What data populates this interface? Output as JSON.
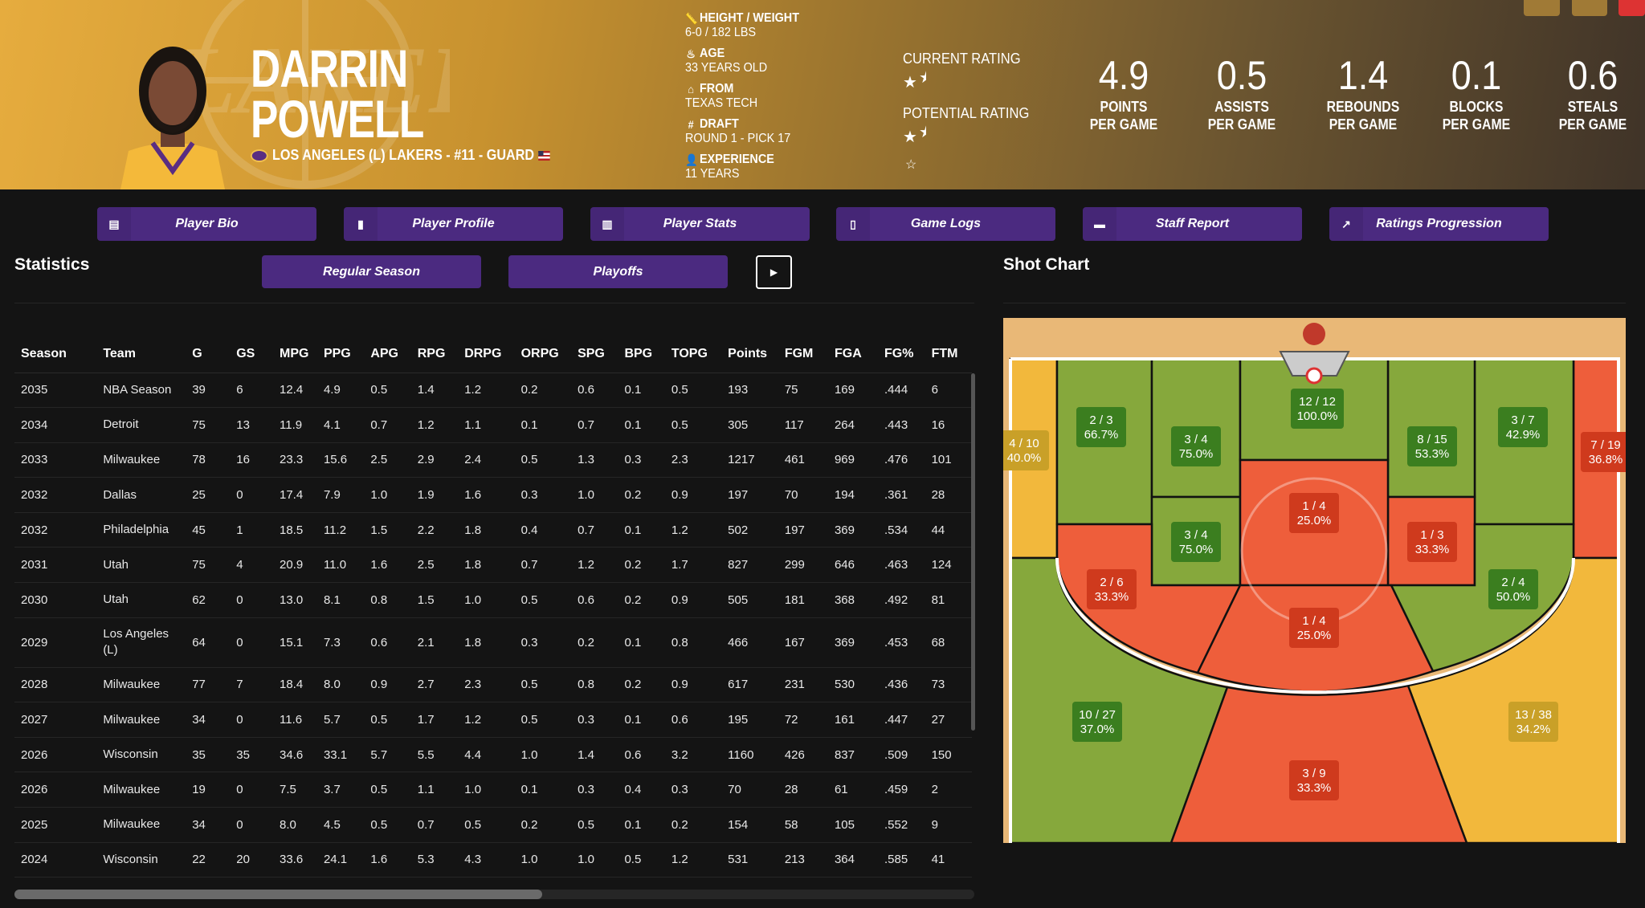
{
  "player": {
    "first_name": "DARRIN",
    "last_name": "POWELL",
    "team_line": "LOS ANGELES (L) LAKERS - #11 - GUARD",
    "team_logo_text": "LAKERS",
    "logo_bg_text": "LOS ANGELES LAKERS"
  },
  "info": [
    {
      "icon": "ruler-icon",
      "label": "HEIGHT / WEIGHT",
      "value": "6-0 / 182 LBS"
    },
    {
      "icon": "cake-icon",
      "label": "AGE",
      "value": "33 YEARS OLD"
    },
    {
      "icon": "school-icon",
      "label": "FROM",
      "value": "TEXAS TECH"
    },
    {
      "icon": "hash-icon",
      "label": "DRAFT",
      "value": "ROUND 1 - PICK 17"
    },
    {
      "icon": "user-clock-icon",
      "label": "EXPERIENCE",
      "value": "11 YEARS"
    }
  ],
  "ratings": {
    "current_label": "CURRENT RATING",
    "current_stars": 1.5,
    "potential_label": "POTENTIAL RATING",
    "potential_stars": 1.5
  },
  "averages": [
    {
      "value": "4.9",
      "l1": "POINTS",
      "l2": "PER GAME"
    },
    {
      "value": "0.5",
      "l1": "ASSISTS",
      "l2": "PER GAME"
    },
    {
      "value": "1.4",
      "l1": "REBOUNDS",
      "l2": "PER GAME"
    },
    {
      "value": "0.1",
      "l1": "BLOCKS",
      "l2": "PER GAME"
    },
    {
      "value": "0.6",
      "l1": "STEALS",
      "l2": "PER GAME"
    }
  ],
  "nav": [
    {
      "label": "Player Bio",
      "icon": "id-card-icon"
    },
    {
      "label": "Player Profile",
      "icon": "book-reader-icon"
    },
    {
      "label": "Player Stats",
      "icon": "bar-chart-icon"
    },
    {
      "label": "Game Logs",
      "icon": "clipboard-icon"
    },
    {
      "label": "Staff Report",
      "icon": "comment-icon"
    },
    {
      "label": "Ratings Progression",
      "icon": "line-chart-icon"
    }
  ],
  "statistics": {
    "title": "Statistics",
    "regular_label": "Regular Season",
    "playoffs_label": "Playoffs",
    "columns": [
      "Season",
      "Team",
      "G",
      "GS",
      "MPG",
      "PPG",
      "APG",
      "RPG",
      "DRPG",
      "ORPG",
      "SPG",
      "BPG",
      "TOPG",
      "Points",
      "FGM",
      "FGA",
      "FG%",
      "FTM"
    ],
    "rows": [
      [
        "2035",
        "NBA Season",
        "39",
        "6",
        "12.4",
        "4.9",
        "0.5",
        "1.4",
        "1.2",
        "0.2",
        "0.6",
        "0.1",
        "0.5",
        "193",
        "75",
        "169",
        ".444",
        "6"
      ],
      [
        "2034",
        "Detroit",
        "75",
        "13",
        "11.9",
        "4.1",
        "0.7",
        "1.2",
        "1.1",
        "0.1",
        "0.7",
        "0.1",
        "0.5",
        "305",
        "117",
        "264",
        ".443",
        "16"
      ],
      [
        "2033",
        "Milwaukee",
        "78",
        "16",
        "23.3",
        "15.6",
        "2.5",
        "2.9",
        "2.4",
        "0.5",
        "1.3",
        "0.3",
        "2.3",
        "1217",
        "461",
        "969",
        ".476",
        "101"
      ],
      [
        "2032",
        "Dallas",
        "25",
        "0",
        "17.4",
        "7.9",
        "1.0",
        "1.9",
        "1.6",
        "0.3",
        "1.0",
        "0.2",
        "0.9",
        "197",
        "70",
        "194",
        ".361",
        "28"
      ],
      [
        "2032",
        "Philadelphia",
        "45",
        "1",
        "18.5",
        "11.2",
        "1.5",
        "2.2",
        "1.8",
        "0.4",
        "0.7",
        "0.1",
        "1.2",
        "502",
        "197",
        "369",
        ".534",
        "44"
      ],
      [
        "2031",
        "Utah",
        "75",
        "4",
        "20.9",
        "11.0",
        "1.6",
        "2.5",
        "1.8",
        "0.7",
        "1.2",
        "0.2",
        "1.7",
        "827",
        "299",
        "646",
        ".463",
        "124"
      ],
      [
        "2030",
        "Utah",
        "62",
        "0",
        "13.0",
        "8.1",
        "0.8",
        "1.5",
        "1.0",
        "0.5",
        "0.6",
        "0.2",
        "0.9",
        "505",
        "181",
        "368",
        ".492",
        "81"
      ],
      [
        "2029",
        "Los Angeles (L)",
        "64",
        "0",
        "15.1",
        "7.3",
        "0.6",
        "2.1",
        "1.8",
        "0.3",
        "0.2",
        "0.1",
        "0.8",
        "466",
        "167",
        "369",
        ".453",
        "68"
      ],
      [
        "2028",
        "Milwaukee",
        "77",
        "7",
        "18.4",
        "8.0",
        "0.9",
        "2.7",
        "2.3",
        "0.5",
        "0.8",
        "0.2",
        "0.9",
        "617",
        "231",
        "530",
        ".436",
        "73"
      ],
      [
        "2027",
        "Milwaukee",
        "34",
        "0",
        "11.6",
        "5.7",
        "0.5",
        "1.7",
        "1.2",
        "0.5",
        "0.3",
        "0.1",
        "0.6",
        "195",
        "72",
        "161",
        ".447",
        "27"
      ],
      [
        "2026",
        "Wisconsin",
        "35",
        "35",
        "34.6",
        "33.1",
        "5.7",
        "5.5",
        "4.4",
        "1.0",
        "1.4",
        "0.6",
        "3.2",
        "1160",
        "426",
        "837",
        ".509",
        "150"
      ],
      [
        "2026",
        "Milwaukee",
        "19",
        "0",
        "7.5",
        "3.7",
        "0.5",
        "1.1",
        "1.0",
        "0.1",
        "0.3",
        "0.4",
        "0.3",
        "70",
        "28",
        "61",
        ".459",
        "2"
      ],
      [
        "2025",
        "Milwaukee",
        "34",
        "0",
        "8.0",
        "4.5",
        "0.5",
        "0.7",
        "0.5",
        "0.2",
        "0.5",
        "0.1",
        "0.2",
        "154",
        "58",
        "105",
        ".552",
        "9"
      ],
      [
        "2024",
        "Wisconsin",
        "22",
        "20",
        "33.6",
        "24.1",
        "1.6",
        "5.3",
        "4.3",
        "1.0",
        "1.0",
        "0.5",
        "1.2",
        "531",
        "213",
        "364",
        ".585",
        "41"
      ]
    ]
  },
  "shot_chart": {
    "title": "Shot Chart",
    "colors": {
      "good": "#86a83c",
      "bad": "#ee5e3b",
      "avg": "#f2b83c",
      "good_label": "#3b7e1f",
      "bad_label": "#cf3a1d",
      "avg_label": "#c9a028"
    },
    "zones": [
      {
        "id": "left-corner-3",
        "made": 4,
        "att": 10,
        "pct": "40.0%",
        "rating": "avg"
      },
      {
        "id": "left-baseline-mid",
        "made": 2,
        "att": 3,
        "pct": "66.7%",
        "rating": "good"
      },
      {
        "id": "left-short-upper",
        "made": 3,
        "att": 4,
        "pct": "75.0%",
        "rating": "good"
      },
      {
        "id": "restricted-area",
        "made": 12,
        "att": 12,
        "pct": "100.0%",
        "rating": "good"
      },
      {
        "id": "right-short-upper",
        "made": 8,
        "att": 15,
        "pct": "53.3%",
        "rating": "good"
      },
      {
        "id": "right-baseline-mid",
        "made": 3,
        "att": 7,
        "pct": "42.9%",
        "rating": "good"
      },
      {
        "id": "right-corner-3",
        "made": 7,
        "att": 19,
        "pct": "36.8%",
        "rating": "bad"
      },
      {
        "id": "paint",
        "made": 1,
        "att": 4,
        "pct": "25.0%",
        "rating": "bad"
      },
      {
        "id": "left-short-lower",
        "made": 3,
        "att": 4,
        "pct": "75.0%",
        "rating": "good"
      },
      {
        "id": "right-short-lower",
        "made": 1,
        "att": 3,
        "pct": "33.3%",
        "rating": "bad"
      },
      {
        "id": "left-wing-mid",
        "made": 2,
        "att": 6,
        "pct": "33.3%",
        "rating": "bad"
      },
      {
        "id": "right-wing-mid",
        "made": 2,
        "att": 4,
        "pct": "50.0%",
        "rating": "good"
      },
      {
        "id": "top-key-mid",
        "made": 1,
        "att": 4,
        "pct": "25.0%",
        "rating": "bad"
      },
      {
        "id": "left-wing-3",
        "made": 10,
        "att": 27,
        "pct": "37.0%",
        "rating": "good"
      },
      {
        "id": "right-wing-3",
        "made": 13,
        "att": 38,
        "pct": "34.2%",
        "rating": "avg"
      },
      {
        "id": "top-3",
        "made": 3,
        "att": 9,
        "pct": "33.3%",
        "rating": "bad"
      }
    ]
  }
}
